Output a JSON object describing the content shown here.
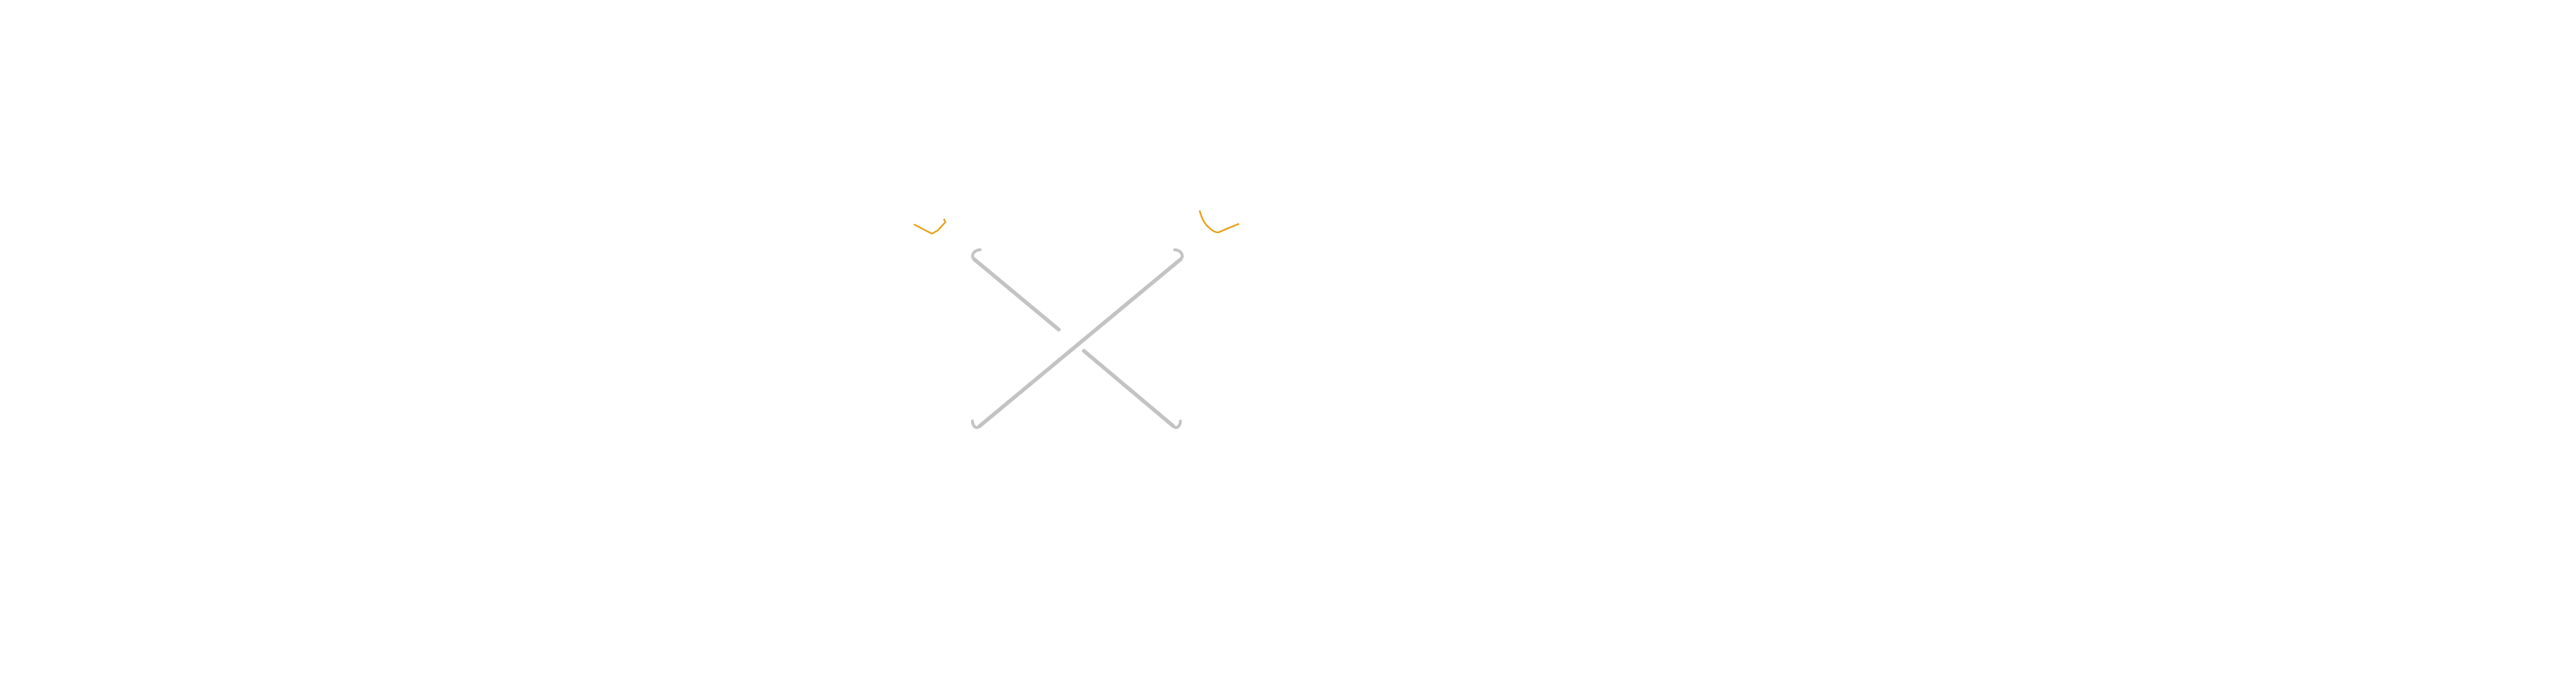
{
  "diagram": {
    "description_name": "crossed-rods",
    "colors": {
      "background": "#ffffff",
      "rod": "#c3c3c3",
      "accent": "#e9a21a"
    },
    "icons": {
      "rod_a": "rod-icon",
      "rod_b": "rod-icon",
      "left_accent": "orange-flick-icon",
      "right_accent": "orange-flick-icon"
    }
  }
}
